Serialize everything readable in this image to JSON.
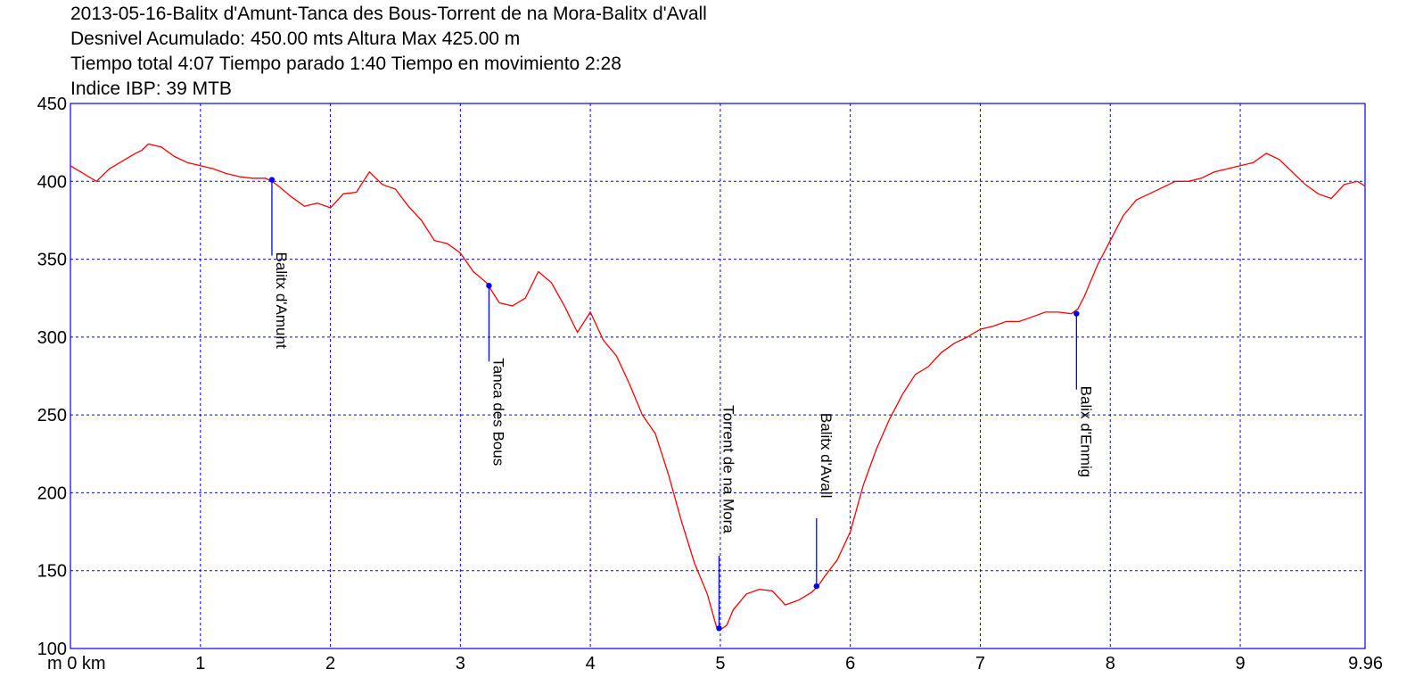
{
  "header": {
    "title": "2013-05-16-Balitx d'Amunt-Tanca des Bous-Torrent de na Mora-Balitx d'Avall",
    "line2": "Desnivel Acumulado: 450.00 mts  Altura Max 425.00 m",
    "line3": "Tiempo total 4:07 Tiempo parado 1:40 Tiempo en movimiento 2:28",
    "line4": "Indice IBP: 39 MTB"
  },
  "chart_data": {
    "type": "line",
    "x_unit_label": "m 0 km",
    "x_ticks": [
      "1",
      "2",
      "3",
      "4",
      "5",
      "6",
      "7",
      "8",
      "9",
      "9.96"
    ],
    "x_tick_values": [
      1,
      2,
      3,
      4,
      5,
      6,
      7,
      8,
      9,
      9.96
    ],
    "xlim": [
      0,
      9.96
    ],
    "y_ticks": [
      "100",
      "150",
      "200",
      "250",
      "300",
      "350",
      "400",
      "450"
    ],
    "y_tick_values": [
      100,
      150,
      200,
      250,
      300,
      350,
      400,
      450
    ],
    "ylim": [
      100,
      450
    ],
    "grid": true,
    "colors": {
      "line": "#ff0000",
      "grid": "#0000ff",
      "waypoint": "#0000ff",
      "frame": "#0000ff"
    },
    "series": [
      {
        "x": [
          0,
          0.1,
          0.2,
          0.3,
          0.4,
          0.5,
          0.55,
          0.6,
          0.7,
          0.8,
          0.9,
          1.0,
          1.1,
          1.2,
          1.3,
          1.4,
          1.5,
          1.55,
          1.6,
          1.7,
          1.8,
          1.9,
          2.0,
          2.1,
          2.2,
          2.3,
          2.4,
          2.5,
          2.6,
          2.7,
          2.8,
          2.9,
          3.0,
          3.1,
          3.2,
          3.3,
          3.4,
          3.5,
          3.6,
          3.7,
          3.8,
          3.9,
          4.0,
          4.1,
          4.2,
          4.3,
          4.4,
          4.5,
          4.6,
          4.7,
          4.8,
          4.9,
          4.97,
          5.0,
          5.05,
          5.1,
          5.2,
          5.3,
          5.4,
          5.5,
          5.6,
          5.7,
          5.75,
          5.8,
          5.9,
          6.0,
          6.1,
          6.2,
          6.3,
          6.4,
          6.5,
          6.6,
          6.7,
          6.8,
          6.9,
          7.0,
          7.1,
          7.2,
          7.3,
          7.4,
          7.5,
          7.6,
          7.7,
          7.75,
          7.8,
          7.9,
          8.0,
          8.1,
          8.2,
          8.3,
          8.4,
          8.5,
          8.6,
          8.7,
          8.8,
          8.9,
          9.0,
          9.1,
          9.2,
          9.3,
          9.4,
          9.5,
          9.6,
          9.7,
          9.8,
          9.9,
          9.96
        ],
        "y": [
          410,
          405,
          400,
          408,
          413,
          418,
          420,
          424,
          422,
          416,
          412,
          410,
          408,
          405,
          403,
          402,
          402,
          400,
          397,
          390,
          384,
          386,
          383,
          392,
          393,
          406,
          398,
          395,
          384,
          375,
          362,
          360,
          354,
          342,
          335,
          322,
          320,
          325,
          342,
          335,
          320,
          303,
          316,
          298,
          288,
          270,
          250,
          238,
          212,
          182,
          155,
          135,
          114,
          112,
          115,
          125,
          135,
          138,
          137,
          128,
          131,
          136,
          140,
          146,
          157,
          175,
          205,
          228,
          247,
          263,
          276,
          281,
          290,
          296,
          300,
          305,
          307,
          310,
          310,
          313,
          316,
          316,
          315,
          318,
          326,
          346,
          362,
          378,
          388,
          392,
          396,
          400,
          400,
          402,
          406,
          408,
          410,
          412,
          418,
          414,
          406,
          398,
          392,
          389,
          398,
          400,
          397
        ]
      }
    ],
    "waypoints": [
      {
        "name": "Balitx d'Amunt",
        "x": 1.55,
        "y": 401
      },
      {
        "name": "Tanca des Bous",
        "x": 3.22,
        "y": 333
      },
      {
        "name": "Torrent de na Mora",
        "x": 4.99,
        "y": 113
      },
      {
        "name": "Balitx d'Avall",
        "x": 5.74,
        "y": 140
      },
      {
        "name": "Balix d'Enmig",
        "x": 7.74,
        "y": 315
      }
    ]
  }
}
